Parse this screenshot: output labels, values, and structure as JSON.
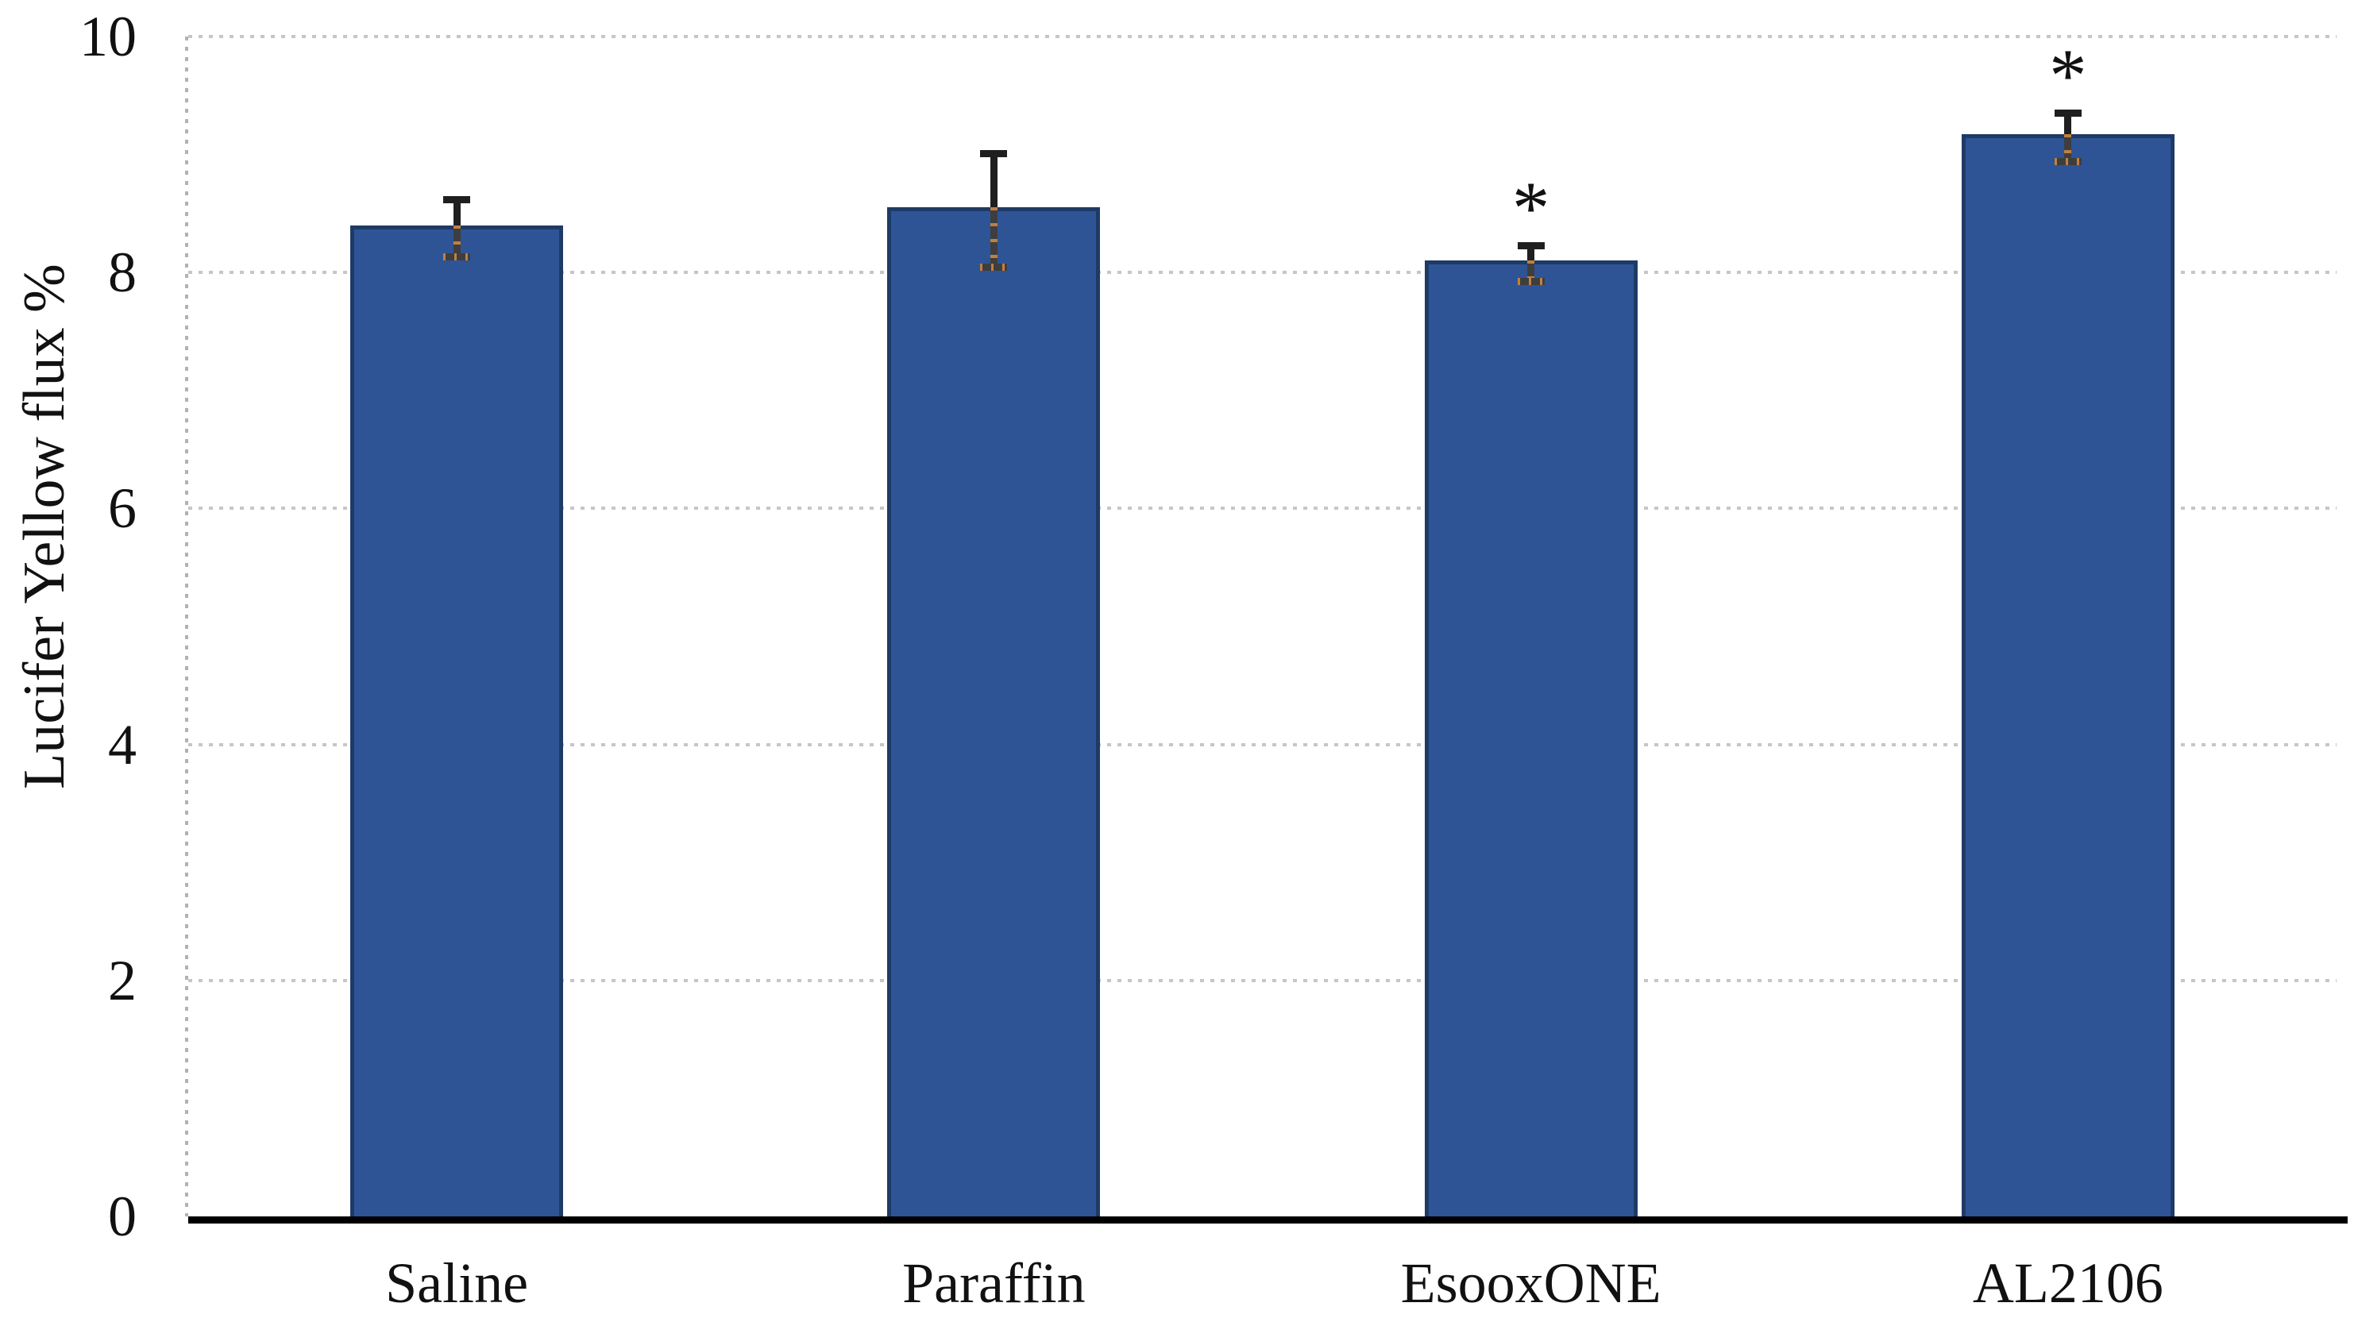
{
  "chart_data": {
    "type": "bar",
    "title": "",
    "ylabel": "Lucifer Yellow flux %",
    "xlabel": "",
    "ylim": [
      0,
      10
    ],
    "yticks": [
      0,
      2,
      4,
      6,
      8,
      10
    ],
    "grid": "horizontal dotted gridlines at each y tick; dotted gray vertical y-axis line; thick solid black x-axis baseline",
    "legend": "none",
    "categories": [
      "Saline",
      "Paraffin",
      "EsooxONE",
      "AL2106"
    ],
    "series": [
      {
        "name": "Lucifer Yellow flux %",
        "values": [
          8.4,
          8.55,
          8.1,
          9.17
        ],
        "errors": [
          0.25,
          0.49,
          0.16,
          0.21
        ],
        "significance": [
          "",
          "",
          "*",
          "*"
        ]
      }
    ],
    "colors": {
      "bar_fill": "#2F5496",
      "bar_border": "#1E3A66",
      "error_bar": "#1f1f1f",
      "error_bar_inner": "#3e3e3e",
      "error_bar_inner_dots": "#C08040",
      "gridline": "#C6C6C6",
      "axis_line": "#B2B2B2",
      "baseline": "#000000",
      "text": "#111111",
      "background": "#FFFFFF"
    }
  }
}
